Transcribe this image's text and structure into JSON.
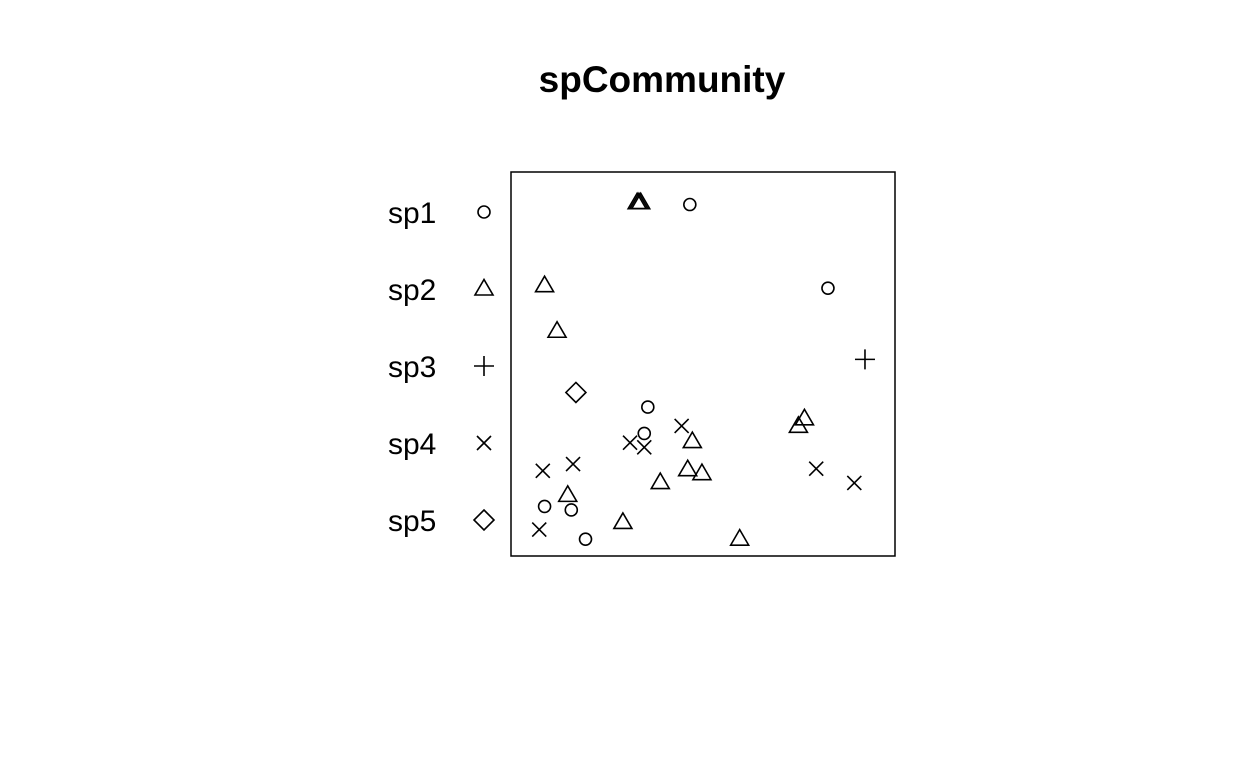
{
  "chart_data": {
    "type": "scatter",
    "title": "spCommunity",
    "xlabel": "",
    "ylabel": "",
    "xlim": [
      0,
      1
    ],
    "ylim": [
      0,
      1
    ],
    "axes_visible": false,
    "grid": false,
    "box": true,
    "legend_position": "left",
    "series": [
      {
        "name": "sp1",
        "marker": "circle",
        "points": [
          [
            0.463,
            0.948
          ],
          [
            0.851,
            0.713
          ],
          [
            0.345,
            0.379
          ],
          [
            0.335,
            0.305
          ],
          [
            0.055,
            0.1
          ],
          [
            0.13,
            0.09
          ],
          [
            0.17,
            0.008
          ]
        ]
      },
      {
        "name": "sp2",
        "marker": "triangle",
        "points": [
          [
            0.315,
            0.953
          ],
          [
            0.325,
            0.953
          ],
          [
            0.055,
            0.72
          ],
          [
            0.09,
            0.592
          ],
          [
            0.32,
            0.953
          ],
          [
            0.785,
            0.346
          ],
          [
            0.768,
            0.325
          ],
          [
            0.47,
            0.282
          ],
          [
            0.457,
            0.203
          ],
          [
            0.497,
            0.192
          ],
          [
            0.38,
            0.167
          ],
          [
            0.12,
            0.131
          ],
          [
            0.275,
            0.055
          ],
          [
            0.603,
            0.008
          ]
        ]
      },
      {
        "name": "sp3",
        "marker": "plus",
        "points": [
          [
            0.955,
            0.513
          ]
        ]
      },
      {
        "name": "sp4",
        "marker": "cross",
        "points": [
          [
            0.295,
            0.279
          ],
          [
            0.335,
            0.266
          ],
          [
            0.44,
            0.326
          ],
          [
            0.135,
            0.219
          ],
          [
            0.05,
            0.2
          ],
          [
            0.04,
            0.035
          ],
          [
            0.818,
            0.206
          ],
          [
            0.925,
            0.166
          ]
        ]
      },
      {
        "name": "sp5",
        "marker": "diamond",
        "points": [
          [
            0.143,
            0.42
          ]
        ]
      }
    ]
  }
}
